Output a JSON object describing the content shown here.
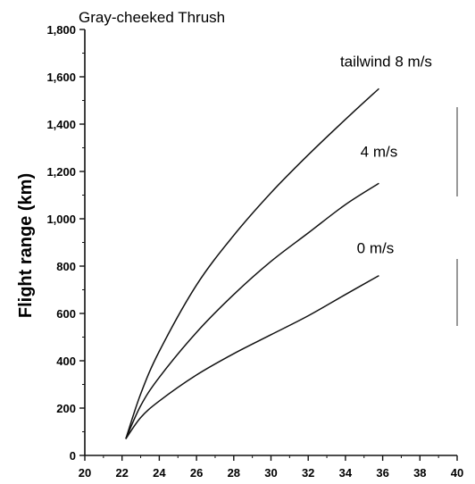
{
  "chart_data": {
    "type": "line",
    "title": "Gray-cheeked Thrush",
    "xlabel": "",
    "ylabel": "Flight range (km)",
    "xlim": [
      20,
      40
    ],
    "ylim": [
      0,
      1800
    ],
    "xticks": [
      20,
      22,
      24,
      26,
      28,
      30,
      32,
      34,
      36,
      38,
      40
    ],
    "xtick_labels": [
      "20",
      "22",
      "24",
      "26",
      "28",
      "30",
      "32",
      "34",
      "36",
      "38",
      "40"
    ],
    "yticks": [
      0,
      200,
      400,
      600,
      800,
      1000,
      1200,
      1400,
      1600,
      1800
    ],
    "ytick_labels": [
      "0",
      "200",
      "400",
      "600",
      "800",
      "1,000",
      "1,200",
      "1,400",
      "1,600",
      "1,800"
    ],
    "grid": false,
    "series": [
      {
        "name": "tailwind 8 m/s",
        "x": [
          22.2,
          23,
          24,
          26,
          28,
          30,
          32,
          34,
          35.8
        ],
        "values": [
          70,
          260,
          440,
          720,
          930,
          1110,
          1270,
          1420,
          1550
        ]
      },
      {
        "name": "4 m/s",
        "x": [
          22.2,
          23,
          24,
          26,
          28,
          30,
          32,
          34,
          35.8
        ],
        "values": [
          70,
          210,
          330,
          520,
          680,
          820,
          940,
          1060,
          1150
        ]
      },
      {
        "name": "0 m/s",
        "x": [
          22.2,
          23,
          24,
          26,
          28,
          30,
          32,
          34,
          35.8
        ],
        "values": [
          70,
          160,
          230,
          340,
          430,
          510,
          590,
          680,
          760
        ]
      }
    ]
  }
}
